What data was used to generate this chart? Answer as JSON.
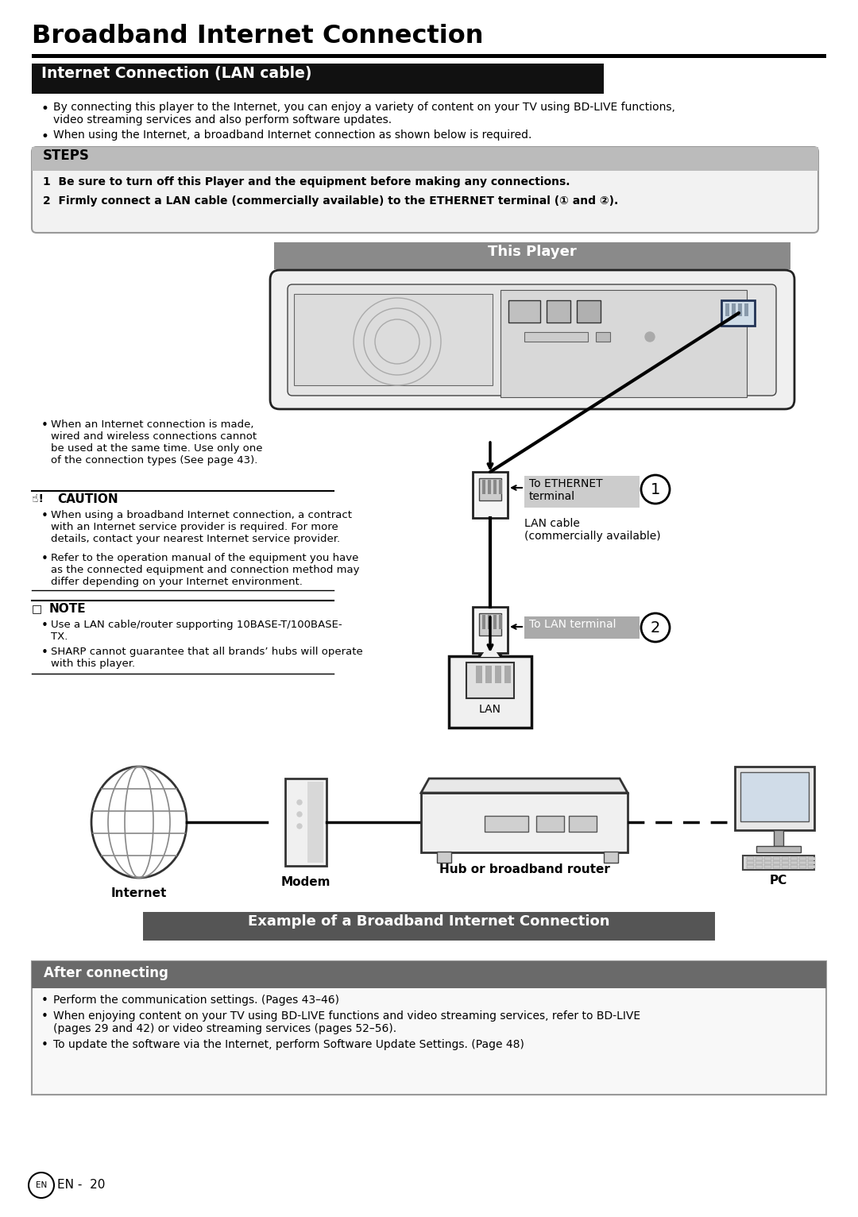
{
  "title": "Broadband Internet Connection",
  "section1_title": "Internet Connection (LAN cable)",
  "bullet1": "By connecting this player to the Internet, you can enjoy a variety of content on your TV using BD-LIVE functions,\nvideo streaming services and also perform software updates.",
  "bullet2": "When using the Internet, a broadband Internet connection as shown below is required.",
  "steps_title": "STEPS",
  "step1": "1  Be sure to turn off this Player and the equipment before making any connections.",
  "step2": "2  Firmly connect a LAN cable (commercially available) to the ETHERNET terminal (① and ②).",
  "this_player_label": "This Player",
  "note_internet": "When an Internet connection is made,\nwired and wireless connections cannot\nbe used at the same time. Use only one\nof the connection types (See page 43).",
  "caution_title": "CAUTION",
  "caution1": "When using a broadband Internet connection, a contract\nwith an Internet service provider is required. For more\ndetails, contact your nearest Internet service provider.",
  "caution2": "Refer to the operation manual of the equipment you have\nas the connected equipment and connection method may\ndiffer depending on your Internet environment.",
  "note_title": "NOTE",
  "note1": "Use a LAN cable/router supporting 10BASE-T/100BASE-\nTX.",
  "note2": "SHARP cannot guarantee that all brands’ hubs will operate\nwith this player.",
  "to_ethernet": "To ETHERNET\nterminal",
  "circle1": "1",
  "lan_cable_label": "LAN cable\n(commercially available)",
  "to_lan": "To LAN terminal",
  "circle2": "2",
  "lan_label": "LAN",
  "internet_label": "Internet",
  "modem_label": "Modem",
  "hub_label": "Hub or broadband router",
  "pc_label": "PC",
  "example_label": "Example of a Broadband Internet Connection",
  "after_title": "After connecting",
  "after1": "Perform the communication settings. (Pages 43–46)",
  "after2": "When enjoying content on your TV using BD-LIVE functions and video streaming services, refer to BD-LIVE\n(pages 29 and 42) or video streaming services (pages 52–56).",
  "after3": "To update the software via the Internet, perform Software Update Settings. (Page 48)",
  "page_num": "EN -  20",
  "bg_color": "#ffffff",
  "section_bg": "#111111",
  "section_text": "#ffffff",
  "steps_bg": "#bbbbbb",
  "this_player_bg": "#8a8a8a",
  "example_bg": "#555555",
  "after_bg": "#6a6a6a",
  "after_text": "#ffffff"
}
